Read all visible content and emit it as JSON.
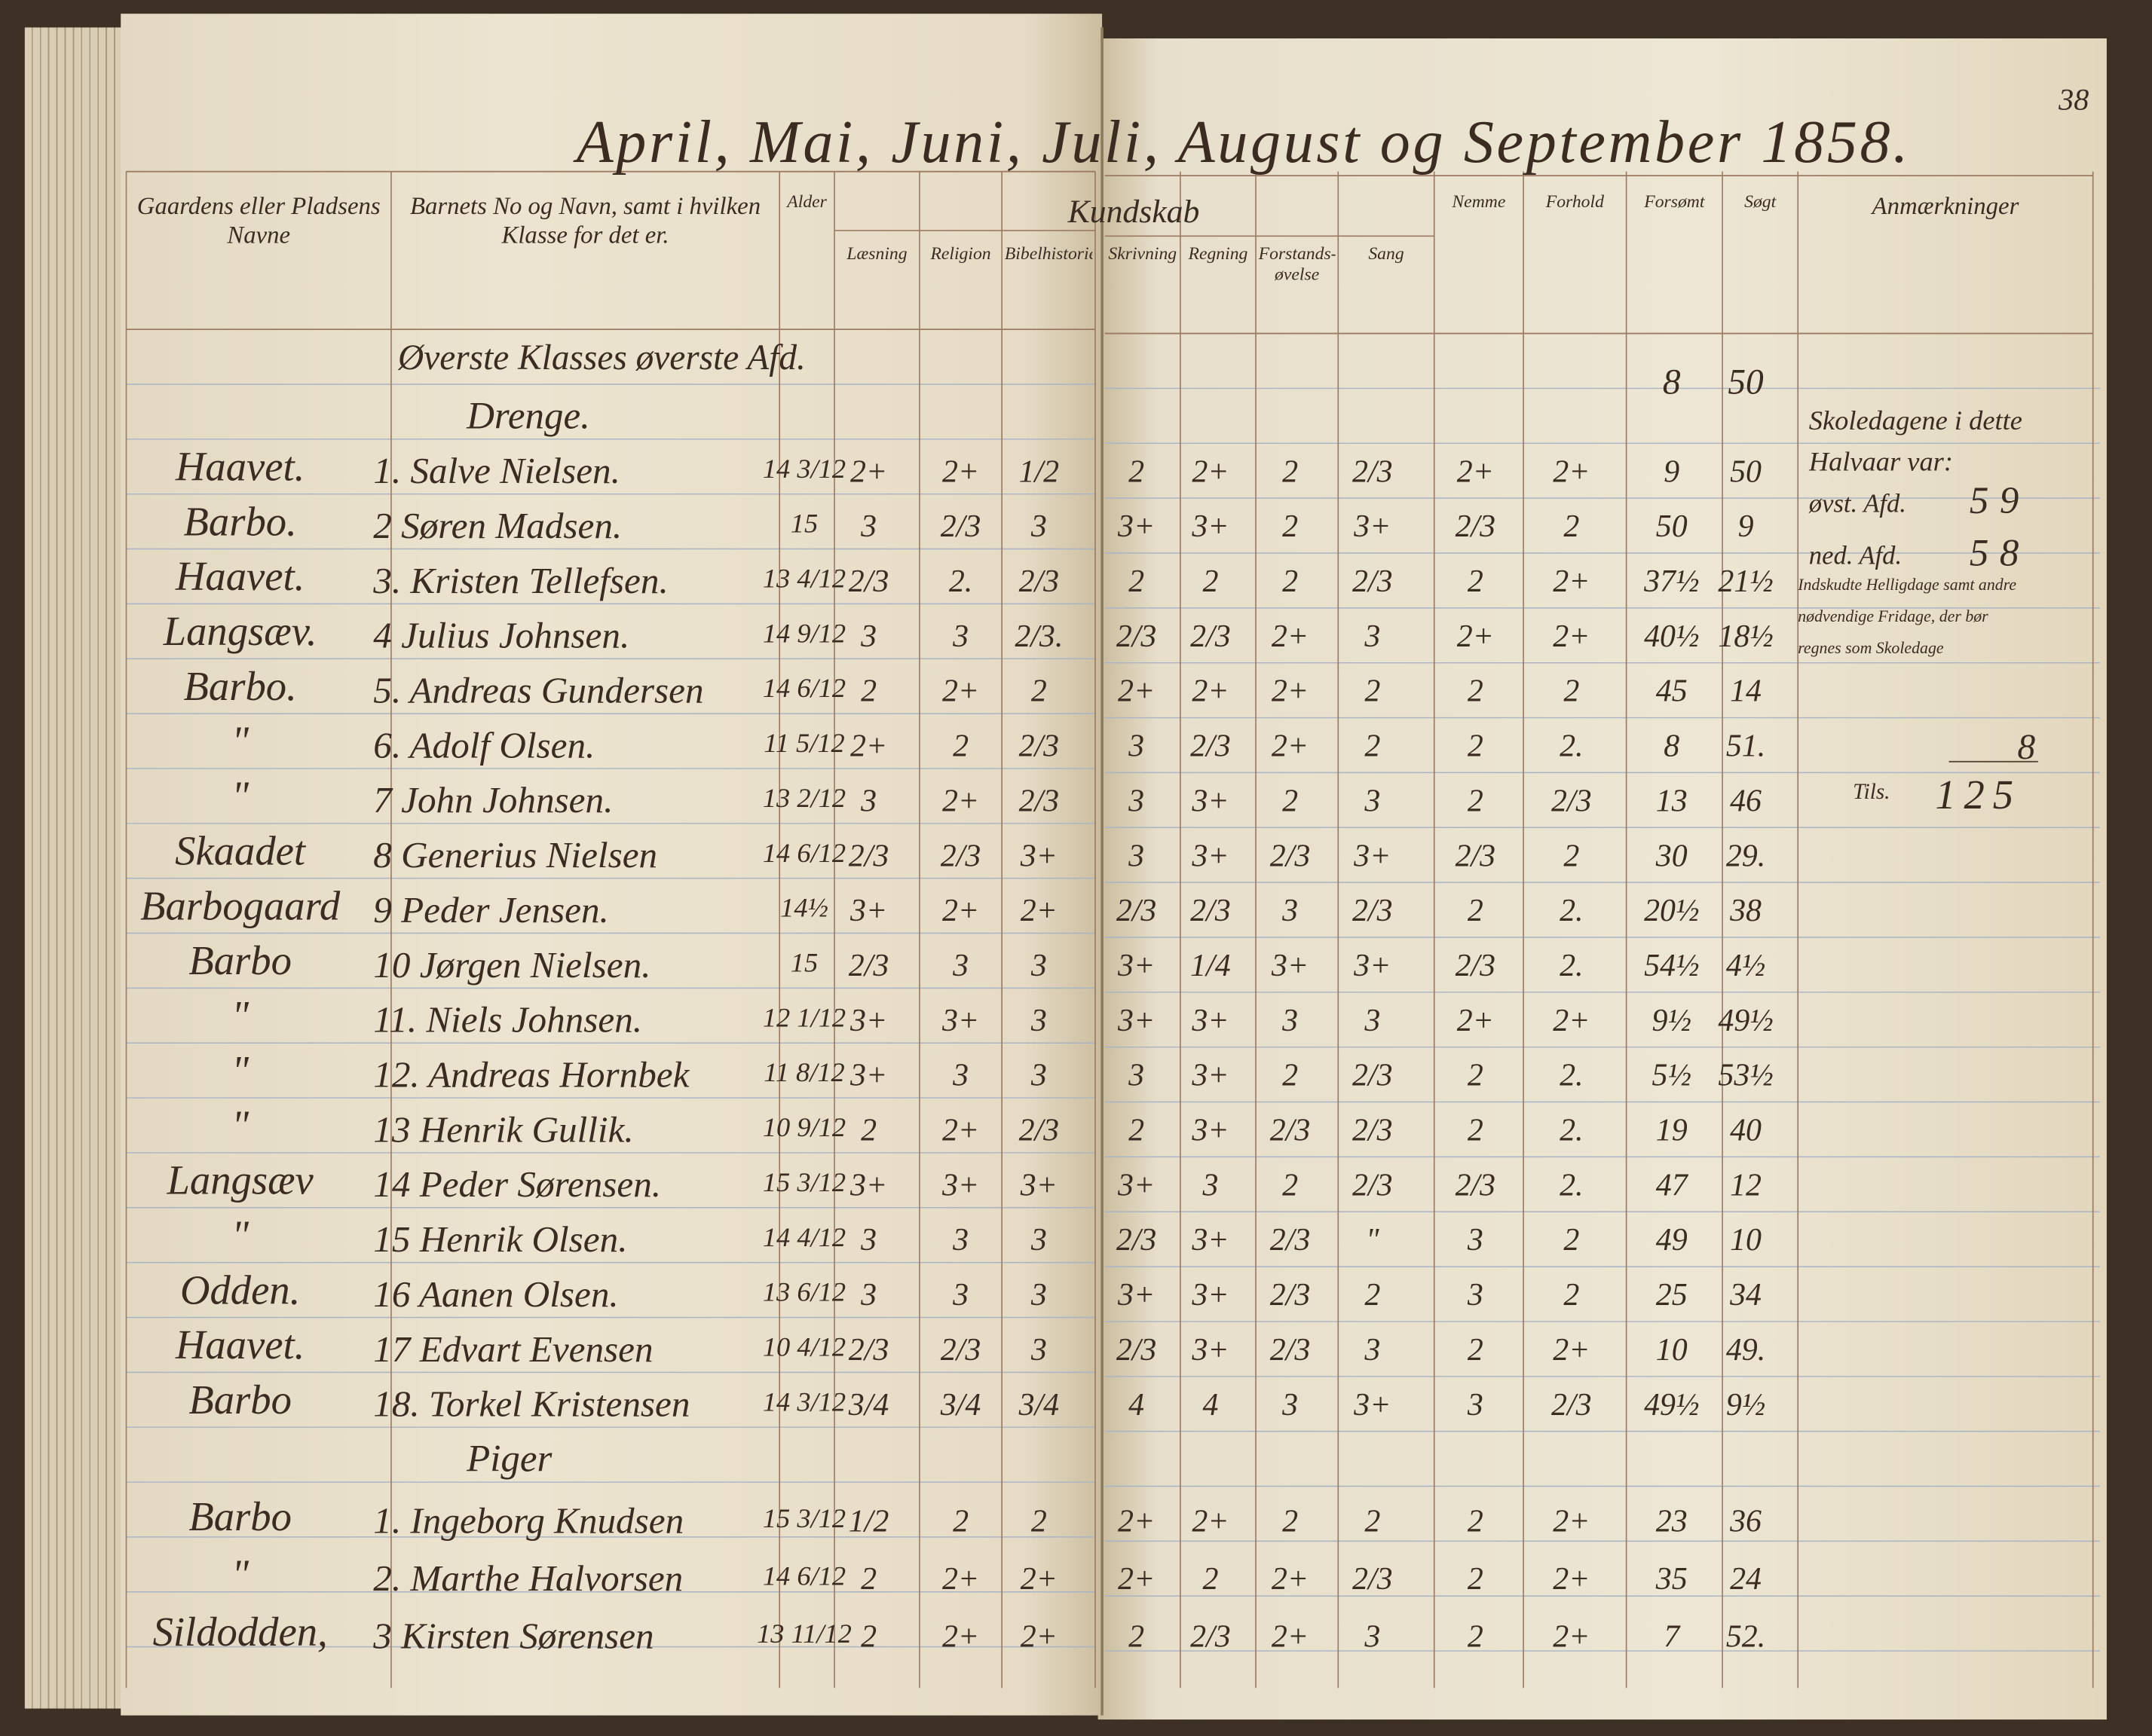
{
  "page_number": "38",
  "title": "April, Mai, Juni, Juli, August og September 1858.",
  "table": {
    "group_header": "Kundskab",
    "headers": [
      "Gaardens eller Pladsens Navne",
      "Barnets No og Navn, samt i hvilken Klasse for det er.",
      "Alder",
      "Læsning",
      "Religion",
      "Bibelhistorie",
      "Skrivning",
      "Regning",
      "Forstands-øvelse",
      "Sang",
      "Nemme",
      "Forhold",
      "Forsømt",
      "Søgt",
      "Anmærkninger"
    ],
    "class_heading": "Øverste Klasses øverste Afd.",
    "top_totals": [
      "8",
      "50"
    ],
    "sections": [
      {
        "heading": "Drenge.",
        "rows": [
          [
            "Haavet.",
            "1. Salve Nielsen.",
            "14 3/12",
            "2+",
            "2+",
            "1/2",
            "2",
            "2+",
            "2",
            "2/3",
            "2+",
            "2+",
            "9",
            "50"
          ],
          [
            "Barbo.",
            "2 Søren Madsen.",
            "15",
            "3",
            "2/3",
            "3",
            "3+",
            "3+",
            "2",
            "3+",
            "2/3",
            "2",
            "50",
            "9"
          ],
          [
            "Haavet.",
            "3. Kristen Tellefsen.",
            "13 4/12",
            "2/3",
            "2.",
            "2/3",
            "2",
            "2",
            "2",
            "2/3",
            "2",
            "2+",
            "37½",
            "21½"
          ],
          [
            "Langsæv.",
            "4 Julius Johnsen.",
            "14 9/12",
            "3",
            "3",
            "2/3.",
            "2/3",
            "2/3",
            "2+",
            "3",
            "2+",
            "2+",
            "40½",
            "18½"
          ],
          [
            "Barbo.",
            "5. Andreas Gundersen",
            "14 6/12",
            "2",
            "2+",
            "2",
            "2+",
            "2+",
            "2+",
            "2",
            "2",
            "2",
            "45",
            "14"
          ],
          [
            "\"",
            "6. Adolf Olsen.",
            "11 5/12",
            "2+",
            "2",
            "2/3",
            "3",
            "2/3",
            "2+",
            "2",
            "2",
            "2.",
            "8",
            "51."
          ],
          [
            "\"",
            "7 John Johnsen.",
            "13 2/12",
            "3",
            "2+",
            "2/3",
            "3",
            "3+",
            "2",
            "3",
            "2",
            "2/3",
            "13",
            "46"
          ],
          [
            "Skaadet",
            "8 Generius Nielsen",
            "14 6/12",
            "2/3",
            "2/3",
            "3+",
            "3",
            "3+",
            "2/3",
            "3+",
            "2/3",
            "2",
            "30",
            "29."
          ],
          [
            "Barbogaard",
            "9 Peder Jensen.",
            "14½",
            "3+",
            "2+",
            "2+",
            "2/3",
            "2/3",
            "3",
            "2/3",
            "2",
            "2.",
            "20½",
            "38"
          ],
          [
            "Barbo",
            "10 Jørgen Nielsen.",
            "15",
            "2/3",
            "3",
            "3",
            "3+",
            "1/4",
            "3+",
            "3+",
            "2/3",
            "2.",
            "54½",
            "4½"
          ],
          [
            "\"",
            "11. Niels Johnsen.",
            "12 1/12",
            "3+",
            "3+",
            "3",
            "3+",
            "3+",
            "3",
            "3",
            "2+",
            "2+",
            "9½",
            "49½"
          ],
          [
            "\"",
            "12. Andreas Hornbek",
            "11 8/12",
            "3+",
            "3",
            "3",
            "3",
            "3+",
            "2",
            "2/3",
            "2",
            "2.",
            "5½",
            "53½"
          ],
          [
            "\"",
            "13 Henrik Gullik.",
            "10 9/12",
            "2",
            "2+",
            "2/3",
            "2",
            "3+",
            "2/3",
            "2/3",
            "2",
            "2.",
            "19",
            "40"
          ],
          [
            "Langsæv",
            "14 Peder Sørensen.",
            "15 3/12",
            "3+",
            "3+",
            "3+",
            "3+",
            "3",
            "2",
            "2/3",
            "2/3",
            "2.",
            "47",
            "12"
          ],
          [
            "\"",
            "15 Henrik Olsen.",
            "14 4/12",
            "3",
            "3",
            "3",
            "2/3",
            "3+",
            "2/3",
            "\"",
            "3",
            "2",
            "49",
            "10"
          ],
          [
            "Odden.",
            "16 Aanen Olsen.",
            "13 6/12",
            "3",
            "3",
            "3",
            "3+",
            "3+",
            "2/3",
            "2",
            "3",
            "2",
            "25",
            "34"
          ],
          [
            "Haavet.",
            "17 Edvart Evensen",
            "10 4/12",
            "2/3",
            "2/3",
            "3",
            "2/3",
            "3+",
            "2/3",
            "3",
            "2",
            "2+",
            "10",
            "49."
          ],
          [
            "Barbo",
            "18. Torkel Kristensen",
            "14 3/12",
            "3/4",
            "3/4",
            "3/4",
            "4",
            "4",
            "3",
            "3+",
            "3",
            "2/3",
            "49½",
            "9½"
          ]
        ]
      },
      {
        "heading": "Piger",
        "rows": [
          [
            "Barbo",
            "1. Ingeborg Knudsen",
            "15 3/12",
            "1/2",
            "2",
            "2",
            "2+",
            "2+",
            "2",
            "2",
            "2",
            "2+",
            "23",
            "36"
          ],
          [
            "\"",
            "2. Marthe Halvorsen",
            "14 6/12",
            "2",
            "2+",
            "2+",
            "2+",
            "2",
            "2+",
            "2/3",
            "2",
            "2+",
            "35",
            "24"
          ],
          [
            "Sildodden,",
            "3 Kirsten Sørensen",
            "13 11/12",
            "2",
            "2+",
            "2+",
            "2",
            "2/3",
            "2+",
            "3",
            "2",
            "2+",
            "7",
            "52."
          ]
        ]
      }
    ]
  },
  "remarks": {
    "intro": "Skoledagene i dette Halvaar var:",
    "items": [
      {
        "label": "øvst. Afd.",
        "value": "59"
      },
      {
        "label": "ned. Afd.",
        "value": "58"
      },
      {
        "label": "Indskudte Helligdage samt andre nødvendige Fridage, der bør regnes som Skoledage",
        "value": "8"
      }
    ],
    "total": {
      "label": "Tils.",
      "value": "125"
    }
  }
}
